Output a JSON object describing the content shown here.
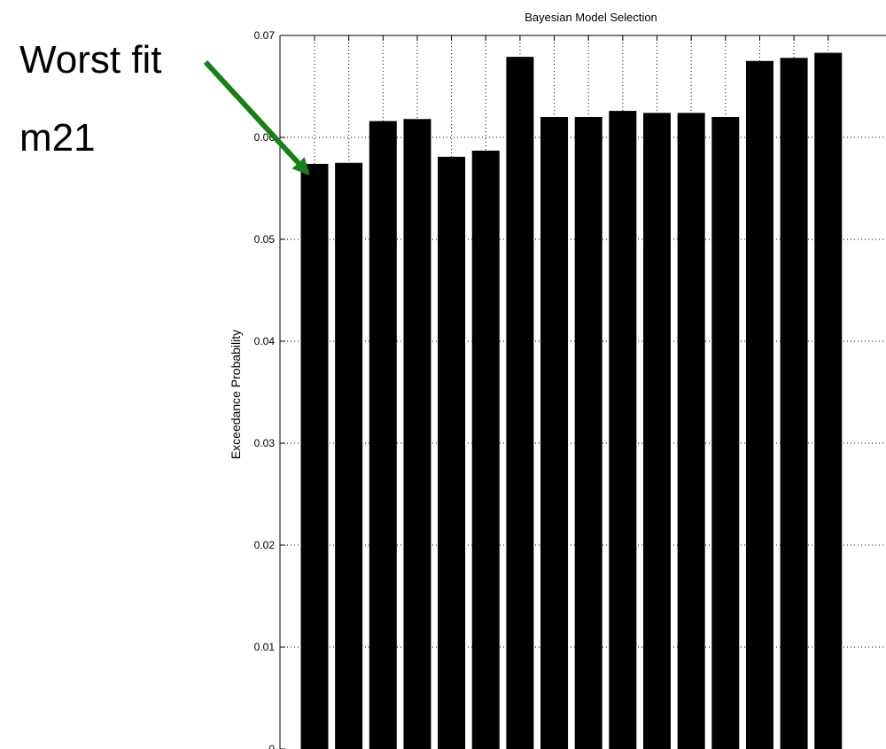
{
  "annotation": {
    "line1": "Worst fit",
    "line2": "m21",
    "arrow_color": "#188018"
  },
  "chart_data": {
    "type": "bar",
    "title": "Bayesian Model Selection",
    "xlabel": "",
    "ylabel": "Exceedance Probability",
    "ylim": [
      0,
      0.07
    ],
    "yticks": [
      0,
      0.01,
      0.02,
      0.03,
      0.04,
      0.05,
      0.06,
      0.07
    ],
    "ytick_labels": [
      "0",
      "0.01",
      "0.02",
      "0.03",
      "0.04",
      "0.05",
      "0.06",
      "0.07"
    ],
    "grid": true,
    "bar_color": "#000000",
    "values": [
      0.0574,
      0.0575,
      0.0616,
      0.0618,
      0.0581,
      0.0587,
      0.0679,
      0.062,
      0.062,
      0.0626,
      0.0624,
      0.0624,
      0.062,
      0.0675,
      0.0678,
      0.0683
    ],
    "highlight_index": 0
  }
}
